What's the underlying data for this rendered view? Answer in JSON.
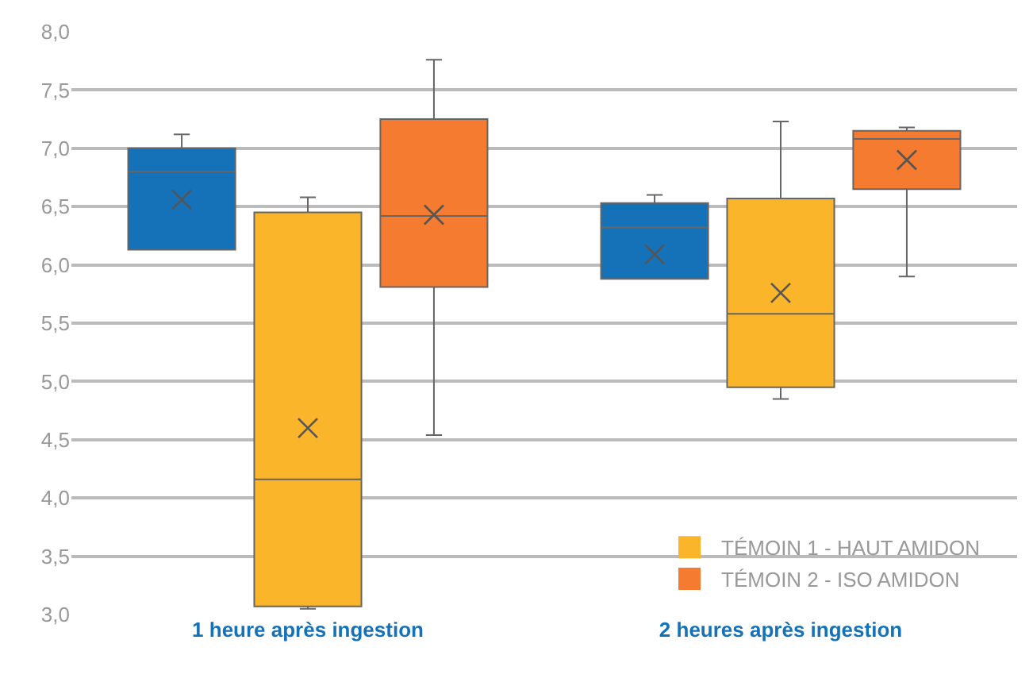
{
  "chart_data": {
    "type": "box",
    "categories": [
      "1 heure après ingestion",
      "2 heures après ingestion"
    ],
    "series": [
      {
        "color": "#1572b9",
        "boxes": [
          {
            "low": 6.13,
            "q1": 6.13,
            "median": 6.8,
            "q3": 7.0,
            "high": 7.12,
            "mean": 6.56
          },
          {
            "low": 5.88,
            "q1": 5.88,
            "median": 6.32,
            "q3": 6.53,
            "high": 6.6,
            "mean": 6.09
          }
        ]
      },
      {
        "name": "TÉMOIN 1 - HAUT AMIDON",
        "color": "#fbb52a",
        "boxes": [
          {
            "low": 3.05,
            "q1": 3.07,
            "median": 4.16,
            "q3": 6.45,
            "high": 6.58,
            "mean": 4.6
          },
          {
            "low": 4.85,
            "q1": 4.95,
            "median": 5.58,
            "q3": 6.57,
            "high": 7.23,
            "mean": 5.76
          }
        ]
      },
      {
        "name": "TÉMOIN 2 - ISO AMIDON",
        "color": "#f47b30",
        "boxes": [
          {
            "low": 4.54,
            "q1": 5.81,
            "median": 6.42,
            "q3": 7.25,
            "high": 7.76,
            "mean": 6.43
          },
          {
            "low": 5.9,
            "q1": 6.65,
            "median": 7.08,
            "q3": 7.15,
            "high": 7.18,
            "mean": 6.9
          }
        ]
      }
    ],
    "ylim": [
      3.0,
      8.0
    ],
    "yticks": [
      {
        "value": 3.0,
        "label": "3,0"
      },
      {
        "value": 3.5,
        "label": "3,5"
      },
      {
        "value": 4.0,
        "label": "4,0"
      },
      {
        "value": 4.5,
        "label": "4,5"
      },
      {
        "value": 5.0,
        "label": "5,0"
      },
      {
        "value": 5.5,
        "label": "5,5"
      },
      {
        "value": 6.0,
        "label": "6,0"
      },
      {
        "value": 6.5,
        "label": "6,5"
      },
      {
        "value": 7.0,
        "label": "7,0"
      },
      {
        "value": 7.5,
        "label": "7,5"
      },
      {
        "value": 8.0,
        "label": "8,0"
      }
    ],
    "grid": "y",
    "legend": "bottom right",
    "marker": "cross"
  }
}
